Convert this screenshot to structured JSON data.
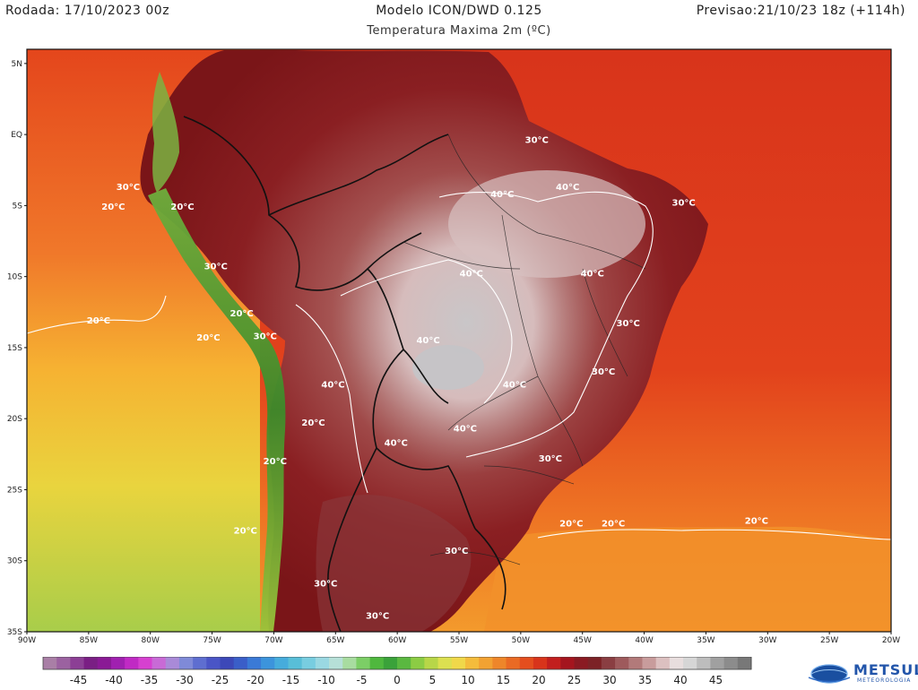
{
  "header": {
    "run": "Rodada: 17/10/2023 00z",
    "model": "Modelo ICON/DWD 0.125",
    "forecast": "Previsao:21/10/23 18z (+114h)",
    "subtitle": "Temperatura Maxima 2m (ºC)"
  },
  "map": {
    "lat_labels": [
      "5N",
      "EQ",
      "5S",
      "10S",
      "15S",
      "20S",
      "25S",
      "30S",
      "35S"
    ],
    "lon_labels": [
      "90W",
      "85W",
      "80W",
      "75W",
      "70W",
      "65W",
      "60W",
      "55W",
      "50W",
      "45W",
      "40W",
      "35W",
      "30W",
      "25W",
      "20W"
    ],
    "isotherm_labels": [
      {
        "text": "30°C",
        "lon": -48.7,
        "lat": -0.6
      },
      {
        "text": "40°C",
        "lon": -46.2,
        "lat": -3.9
      },
      {
        "text": "30°C",
        "lon": -36.8,
        "lat": -5.0
      },
      {
        "text": "40°C",
        "lon": -51.5,
        "lat": -4.4
      },
      {
        "text": "40°C",
        "lon": -54.0,
        "lat": -10.0
      },
      {
        "text": "40°C",
        "lon": -44.2,
        "lat": -10.0
      },
      {
        "text": "30°C",
        "lon": -41.3,
        "lat": -13.5
      },
      {
        "text": "40°C",
        "lon": -57.5,
        "lat": -14.7
      },
      {
        "text": "30°C",
        "lon": -43.3,
        "lat": -16.9
      },
      {
        "text": "40°C",
        "lon": -65.2,
        "lat": -17.8
      },
      {
        "text": "40°C",
        "lon": -50.5,
        "lat": -17.8
      },
      {
        "text": "40°C",
        "lon": -54.5,
        "lat": -20.9
      },
      {
        "text": "40°C",
        "lon": -60.1,
        "lat": -21.9
      },
      {
        "text": "20°C",
        "lon": -66.8,
        "lat": -20.5
      },
      {
        "text": "30°C",
        "lon": -47.6,
        "lat": -23.0
      },
      {
        "text": "20°C",
        "lon": -45.9,
        "lat": -27.6
      },
      {
        "text": "20°C",
        "lon": -42.5,
        "lat": -27.6
      },
      {
        "text": "20°C",
        "lon": -30.9,
        "lat": -27.4
      },
      {
        "text": "30°C",
        "lon": -55.2,
        "lat": -29.5
      },
      {
        "text": "30°C",
        "lon": -65.8,
        "lat": -31.8
      },
      {
        "text": "30°C",
        "lon": -61.6,
        "lat": -34.1
      },
      {
        "text": "30°C",
        "lon": -81.8,
        "lat": -3.9
      },
      {
        "text": "20°C",
        "lon": -83.0,
        "lat": -5.3
      },
      {
        "text": "20°C",
        "lon": -77.4,
        "lat": -5.3
      },
      {
        "text": "30°C",
        "lon": -74.7,
        "lat": -9.5
      },
      {
        "text": "20°C",
        "lon": -84.2,
        "lat": -13.3
      },
      {
        "text": "20°C",
        "lon": -72.6,
        "lat": -12.8
      },
      {
        "text": "30°C",
        "lon": -70.7,
        "lat": -14.4
      },
      {
        "text": "20°C",
        "lon": -75.3,
        "lat": -14.5
      },
      {
        "text": "20°C",
        "lon": -69.9,
        "lat": -23.2
      },
      {
        "text": "20°C",
        "lon": -72.3,
        "lat": -28.1
      }
    ]
  },
  "colorbar": {
    "ticks": [
      "-45",
      "-40",
      "-35",
      "-30",
      "-25",
      "-20",
      "-15",
      "-10",
      "-5",
      "0",
      "5",
      "10",
      "15",
      "20",
      "25",
      "30",
      "35",
      "40",
      "45"
    ]
  },
  "logo": {
    "name": "METSUL",
    "tagline": "METEOROLOGIA"
  }
}
